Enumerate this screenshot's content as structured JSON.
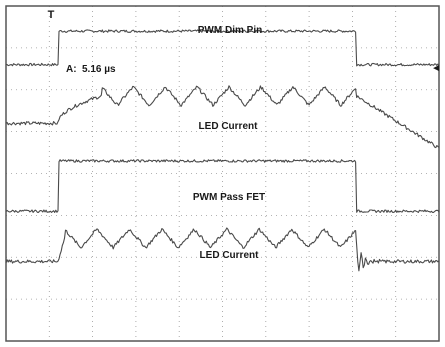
{
  "chart_data": {
    "type": "line",
    "title": "",
    "xlabel": "",
    "ylabel": "",
    "grid": true,
    "grid_divisions": {
      "horizontal": 10,
      "vertical": 8
    },
    "x_range": [
      0,
      10
    ],
    "y_range": [
      0,
      8
    ],
    "cursor_readout": {
      "label": "A:",
      "value": "5.16 µs"
    },
    "trigger_marker": "T",
    "level_marker": "◄",
    "series": [
      {
        "name": "PWM Dim Pin",
        "kind": "square",
        "low": 6.6,
        "high": 7.4,
        "pulse": [
          1.2,
          8.1
        ]
      },
      {
        "name": "LED Current",
        "kind": "ripple",
        "base": 5.2,
        "rise": [
          1.2,
          2.2
        ],
        "plateau": 5.85,
        "ripple_amplitude": 0.22,
        "ripple_cycles": 8,
        "fall": [
          8.1,
          10.0
        ],
        "fall_end": 4.6
      },
      {
        "name": "PWM Pass FET",
        "kind": "square",
        "low": 3.1,
        "high": 4.3,
        "pulse": [
          1.2,
          8.1
        ]
      },
      {
        "name": "LED Current",
        "kind": "ripple_fast",
        "base": 1.9,
        "rise": [
          1.2,
          1.35
        ],
        "plateau": 2.45,
        "ripple_amplitude": 0.22,
        "ripple_cycles": 9,
        "fall": [
          8.1,
          8.2
        ],
        "ring": true
      }
    ],
    "labels": [
      {
        "text": "PWM Dim Pin",
        "series": 0
      },
      {
        "text": "LED Current",
        "series": 1
      },
      {
        "text": "PWM Pass FET",
        "series": 2
      },
      {
        "text": "LED Current",
        "series": 3
      }
    ]
  }
}
